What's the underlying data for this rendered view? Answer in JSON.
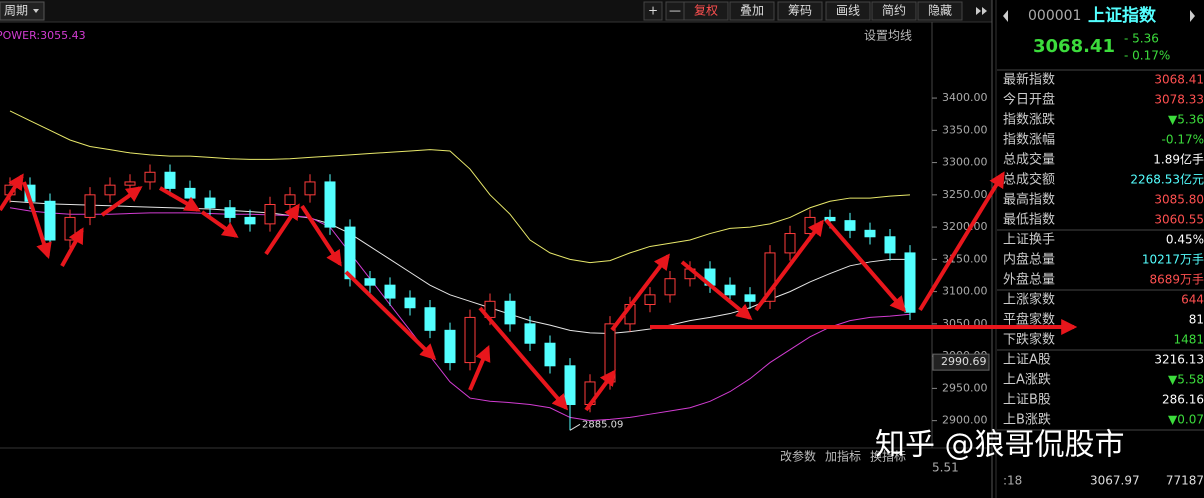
{
  "toolbar": {
    "period": "周期",
    "buttons": [
      "+",
      "—",
      "复权",
      "叠加",
      "筹码",
      "画线",
      "简约",
      "隐藏"
    ]
  },
  "chart_data": {
    "type": "candlestick",
    "indicator": "POWER:3055.43",
    "ma_setting": "设置均线",
    "open": [
      3250,
      3265,
      3240,
      3180,
      3215,
      3250,
      3265,
      3270,
      3285,
      3260,
      3245,
      3230,
      3215,
      3205,
      3235,
      3250,
      3270,
      3200,
      3120,
      3110,
      3090,
      3075,
      3040,
      2990,
      3060,
      3085,
      3050,
      3020,
      2985,
      2925,
      2960,
      3050,
      3080,
      3095,
      3120,
      3135,
      3110,
      3095,
      3085,
      3160,
      3190,
      3215,
      3210,
      3195,
      3185,
      3160
    ],
    "high": [
      3277,
      3277,
      3252,
      3227,
      3262,
      3277,
      3282,
      3297,
      3297,
      3272,
      3257,
      3242,
      3227,
      3247,
      3262,
      3282,
      3282,
      3212,
      3132,
      3122,
      3102,
      3087,
      3052,
      3072,
      3097,
      3097,
      3062,
      3032,
      2997,
      2972,
      3062,
      3092,
      3107,
      3132,
      3147,
      3147,
      3122,
      3107,
      3172,
      3202,
      3227,
      3227,
      3222,
      3207,
      3197,
      3172
    ],
    "low": [
      3238,
      3228,
      3168,
      3168,
      3203,
      3238,
      3253,
      3258,
      3248,
      3233,
      3218,
      3203,
      3193,
      3193,
      3223,
      3238,
      3188,
      3108,
      3098,
      3078,
      3063,
      3028,
      2978,
      2978,
      3048,
      3038,
      3008,
      2973,
      2885.09,
      2913,
      2948,
      3038,
      3068,
      3083,
      3108,
      3098,
      3083,
      3073,
      3073,
      3148,
      3178,
      3198,
      3183,
      3173,
      3148,
      3056
    ],
    "close": [
      3265,
      3240,
      3180,
      3215,
      3250,
      3265,
      3270,
      3285,
      3260,
      3245,
      3230,
      3215,
      3205,
      3235,
      3250,
      3270,
      3200,
      3120,
      3110,
      3090,
      3075,
      3040,
      2990,
      3060,
      3085,
      3050,
      3020,
      2985,
      2925,
      2960,
      3050,
      3080,
      3095,
      3120,
      3135,
      3110,
      3095,
      3085,
      3160,
      3190,
      3215,
      3210,
      3195,
      3185,
      3160,
      3068
    ],
    "series": [
      {
        "color": "#e8e86a",
        "values": [
          3380,
          3365,
          3350,
          3335,
          3325,
          3320,
          3315,
          3312,
          3310,
          3310,
          3308,
          3306,
          3305,
          3305,
          3306,
          3308,
          3310,
          3312,
          3314,
          3316,
          3318,
          3320,
          3318,
          3290,
          3250,
          3220,
          3180,
          3160,
          3150,
          3145,
          3148,
          3160,
          3170,
          3175,
          3180,
          3190,
          3198,
          3200,
          3205,
          3215,
          3230,
          3240,
          3245,
          3245,
          3248,
          3250
        ]
      },
      {
        "color": "#e6e6e6",
        "values": [
          3240,
          3238,
          3236,
          3235,
          3234,
          3233,
          3232,
          3231,
          3230,
          3229,
          3228,
          3226,
          3224,
          3222,
          3218,
          3214,
          3205,
          3190,
          3170,
          3150,
          3130,
          3110,
          3095,
          3085,
          3075,
          3065,
          3055,
          3048,
          3040,
          3036,
          3035,
          3038,
          3042,
          3048,
          3055,
          3060,
          3066,
          3075,
          3088,
          3100,
          3115,
          3128,
          3140,
          3146,
          3150,
          3150
        ]
      },
      {
        "color": "#d23cd2",
        "values": [
          3230,
          3225,
          3222,
          3220,
          3220,
          3220,
          3221,
          3222,
          3222,
          3222,
          3221,
          3220,
          3220,
          3219,
          3218,
          3215,
          3200,
          3160,
          3120,
          3080,
          3040,
          3000,
          2960,
          2935,
          2930,
          2928,
          2925,
          2920,
          2905,
          2900,
          2902,
          2905,
          2910,
          2915,
          2920,
          2930,
          2945,
          2965,
          2990,
          3010,
          3030,
          3045,
          3055,
          3060,
          3062,
          3065
        ]
      }
    ],
    "up_color": "#ff3c3c",
    "down_color": "#54ffff",
    "ylim": [
      2870,
      3490
    ],
    "yticks": [
      {
        "value": 2900,
        "label": "2900.00"
      },
      {
        "value": 2950,
        "label": "2950.00"
      },
      {
        "value": 3000,
        "label": "3000.00"
      },
      {
        "value": 3050,
        "label": "3050.00"
      },
      {
        "value": 3100,
        "label": "3100.00"
      },
      {
        "value": 3150,
        "label": "3150.00"
      },
      {
        "value": 3200,
        "label": "3200.00"
      },
      {
        "value": 3250,
        "label": "3250.00"
      },
      {
        "value": 3300,
        "label": "3300.00"
      },
      {
        "value": 3350,
        "label": "3350.00"
      },
      {
        "value": 3400,
        "label": "3400.00"
      }
    ],
    "price_marker": 2990.69,
    "low_label": 2885.09
  },
  "bottom": {
    "buttons": [
      "改参数",
      "加指标",
      "换指标"
    ],
    "volume_axis": "5.51",
    "watermark": "知乎 @狼哥侃股市"
  },
  "panel": {
    "code": "000001",
    "name": "上证指数",
    "price": "3068.41",
    "change": "- 5.36",
    "pct": "- 0.17%",
    "rows": [
      [
        "最新指数",
        "3068.41"
      ],
      [
        "今日开盘",
        "3078.33"
      ],
      [
        "指数涨跌",
        "▼5.36"
      ],
      [
        "指数涨幅",
        "-0.17%"
      ],
      [
        "总成交量",
        "1.89亿手"
      ],
      [
        "总成交额",
        "2268.53亿元"
      ],
      [
        "最高指数",
        "3085.80"
      ],
      [
        "最低指数",
        "3060.55"
      ],
      [
        "上证换手",
        "0.45%"
      ],
      [
        "内盘总量",
        "10217万手"
      ],
      [
        "外盘总量",
        "8689万手"
      ],
      [
        "上涨家数",
        "644"
      ],
      [
        "平盘家数",
        "81"
      ],
      [
        "下跌家数",
        "1481"
      ],
      [
        "上证A股",
        "3216.13"
      ],
      [
        "上A涨跌",
        "▼5.58"
      ],
      [
        "上证B股",
        "286.16"
      ],
      [
        "上B涨跌",
        "▼0.07"
      ]
    ],
    "trade": [
      ":18",
      "3067.97",
      "77187"
    ]
  }
}
